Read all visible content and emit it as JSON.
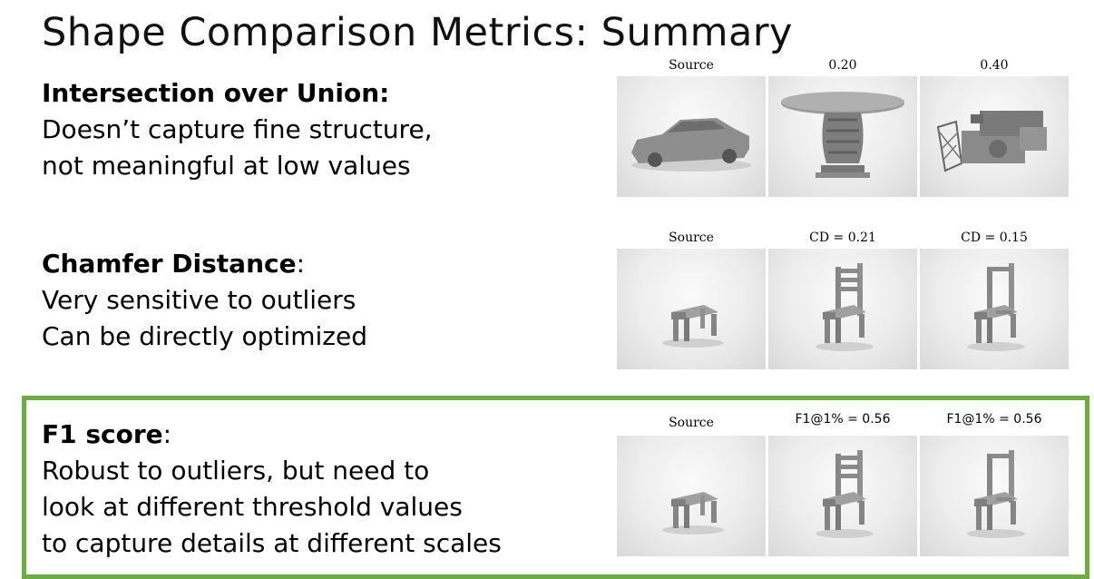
{
  "title": "Shape Comparison Metrics: Summary",
  "sections": [
    {
      "heading": "Intersection over Union:",
      "heading_suffix": "",
      "lines": [
        "Doesn’t capture fine structure,",
        "not meaningful at low values"
      ],
      "captions": [
        "Source",
        "0.20",
        "0.40"
      ]
    },
    {
      "heading": "Chamfer Distance",
      "heading_suffix": ":",
      "lines": [
        "Very sensitive to outliers",
        "Can be directly optimized"
      ],
      "captions": [
        "Source",
        "CD = 0.21",
        "CD = 0.15"
      ]
    },
    {
      "heading": "F1 score",
      "heading_suffix": ":",
      "lines": [
        "Robust to outliers, but need to",
        "look at different threshold values",
        "to capture details at different scales"
      ],
      "captions": [
        "Source",
        "F1@1% = 0.56",
        "F1@1% = 0.56"
      ]
    }
  ],
  "colors": {
    "highlight_border": "#6ea94a",
    "shape_gray": "#8a8a8a"
  },
  "icons": [
    "car-render",
    "table-render",
    "camera-render",
    "stool-render",
    "chair-render",
    "chair-broken-render"
  ]
}
